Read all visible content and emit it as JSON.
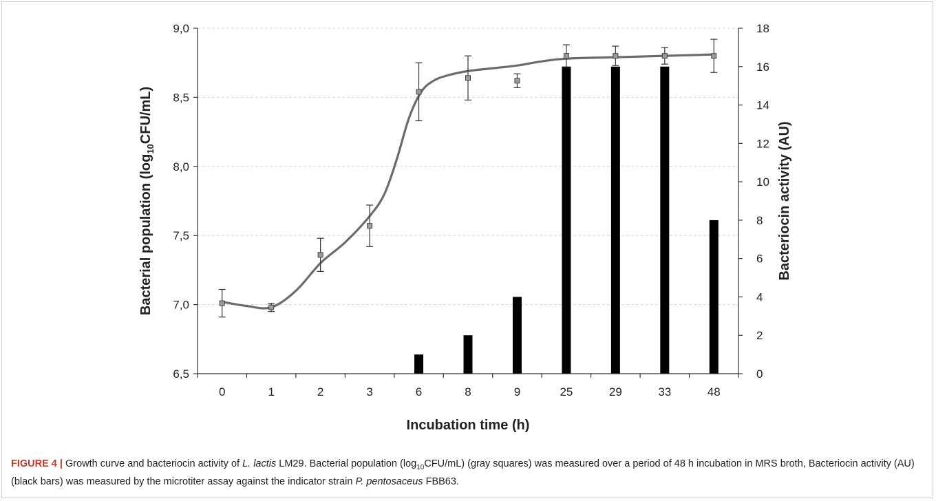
{
  "chart_data": {
    "type": "bar+line",
    "categories": [
      "0",
      "1",
      "2",
      "3",
      "6",
      "8",
      "9",
      "25",
      "29",
      "33",
      "48"
    ],
    "xlabel": "Incubation time (h)",
    "ylabel_left_pre": "Bacterial population (log",
    "ylabel_left_sub": "10",
    "ylabel_left_post": "CFU/mL)",
    "ylabel_right": "Bacteriocin activity (AU)",
    "ylim_left": [
      6.5,
      9.0
    ],
    "ylim_right": [
      0,
      18
    ],
    "yticks_left": [
      "6,5",
      "7,0",
      "7,5",
      "8,0",
      "8,5",
      "9,0"
    ],
    "yticks_left_values": [
      6.5,
      7.0,
      7.5,
      8.0,
      8.5,
      9.0
    ],
    "yticks_right": [
      "0",
      "2",
      "4",
      "6",
      "8",
      "10",
      "12",
      "14",
      "16",
      "18"
    ],
    "yticks_right_values": [
      0,
      2,
      4,
      6,
      8,
      10,
      12,
      14,
      16,
      18
    ],
    "grid": true,
    "series": [
      {
        "kind": "scatter-errorbar",
        "axis": "left",
        "color": "#707070",
        "values": [
          7.01,
          6.98,
          7.36,
          7.57,
          8.54,
          8.64,
          8.62,
          8.8,
          8.8,
          8.8,
          8.8
        ],
        "errors": [
          0.1,
          0.03,
          0.12,
          0.15,
          0.21,
          0.16,
          0.05,
          0.08,
          0.07,
          0.06,
          0.12
        ]
      },
      {
        "kind": "fit-curve",
        "axis": "left",
        "color": "#6b6b6b",
        "x": [
          0,
          0.5,
          1,
          1.5,
          2,
          2.5,
          3,
          3.3,
          3.55,
          3.8,
          4.05,
          4.3,
          4.6,
          5,
          5.5,
          6,
          6.5,
          7,
          8,
          9,
          10
        ],
        "values": [
          7.02,
          6.99,
          6.98,
          7.1,
          7.3,
          7.45,
          7.64,
          7.8,
          8.05,
          8.35,
          8.54,
          8.62,
          8.66,
          8.69,
          8.71,
          8.73,
          8.76,
          8.78,
          8.79,
          8.8,
          8.81
        ]
      },
      {
        "kind": "bar",
        "axis": "right",
        "color": "#000000",
        "values": [
          0,
          0,
          0,
          0,
          1,
          2,
          4,
          16,
          16,
          16,
          8
        ]
      }
    ]
  },
  "caption": {
    "label": "FIGURE 4 |",
    "part1": " Growth curve and bacteriocin activity of ",
    "italic1": "L. lactis",
    "part2": " LM29. Bacterial population (log",
    "sub": "10",
    "part3": "CFU/mL) (gray squares) was measured over a period of 48 h incubation in MRS broth, Bacteriocin activity (AU) (black bars) was measured by the microtiter assay against the indicator strain ",
    "italic2": "P. pentosaceus",
    "part4": " FBB63."
  }
}
